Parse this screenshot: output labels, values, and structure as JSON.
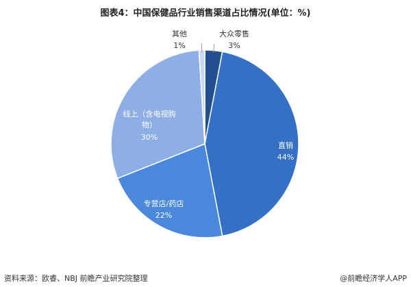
{
  "chart_data": {
    "type": "pie",
    "title": "图表4：中国保健品行业销售渠道占比情况(单位：%)",
    "categories": [
      "大众零售",
      "直销",
      "专营店/药店",
      "线上（含电视购物）",
      "其他"
    ],
    "values": [
      3,
      44,
      22,
      30,
      1
    ],
    "value_labels": [
      "3%",
      "44%",
      "22%",
      "30%",
      "1%"
    ],
    "colors": [
      "#244f8f",
      "#3470c6",
      "#4a88dc",
      "#8eaee6",
      "#c9d7f0"
    ],
    "source": "资料来源：欧睿、NBJ 前瞻产业研究院整理",
    "credit": "@前瞻经济学人APP"
  }
}
